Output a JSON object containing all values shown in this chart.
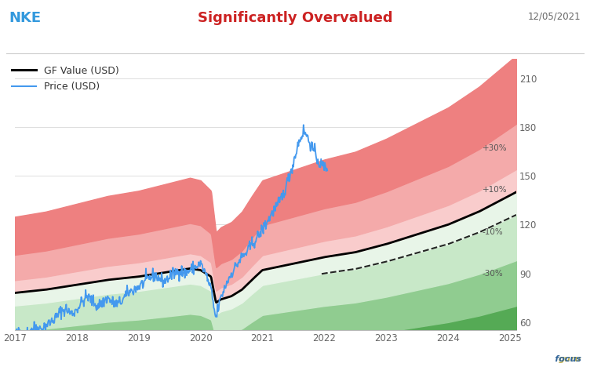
{
  "title_left": "NKE",
  "title_center": "Significantly Overvalued",
  "title_date": "12/05/2021",
  "title_left_color": "#3399DD",
  "title_center_color": "#CC2222",
  "title_date_color": "#666666",
  "legend_gf": "GF Value (USD)",
  "legend_price": "Price (USD)",
  "ylabel_right_ticks": [
    60,
    90,
    120,
    150,
    180,
    210
  ],
  "band_labels": [
    "+30%",
    "+10%",
    "-10%",
    "-30%"
  ],
  "x_start": 2017.0,
  "x_end": 2025.1,
  "xtick_labels": [
    "2017",
    "2018",
    "2019",
    "2020",
    "2021",
    "2022",
    "2023",
    "2024",
    "2025"
  ],
  "xtick_values": [
    2017,
    2018,
    2019,
    2020,
    2021,
    2022,
    2023,
    2024,
    2025
  ],
  "background_color": "#FFFFFF",
  "colors": {
    "red_dark": "#E04040",
    "red_mid": "#EE8080",
    "red_light": "#F4AAAA",
    "pink_light": "#F9CCCC",
    "white_zone": "#FFFFFF",
    "green_vlight": "#E8F5E8",
    "green_light": "#C8E8C8",
    "green_mid": "#90CC90",
    "green_strong": "#55AA55"
  },
  "gf_anchors_t": [
    2017.0,
    2017.5,
    2018.0,
    2018.5,
    2019.0,
    2019.5,
    2019.83,
    2020.0,
    2020.17,
    2020.25,
    2020.33,
    2020.5,
    2020.67,
    2020.83,
    2021.0,
    2021.25,
    2021.5,
    2021.75,
    2022.0,
    2022.5,
    2023.0,
    2023.5,
    2024.0,
    2024.5,
    2025.1
  ],
  "gf_anchors_v": [
    78,
    80,
    83,
    86,
    88,
    91,
    93,
    92,
    88,
    72,
    74,
    76,
    80,
    86,
    92,
    94,
    96,
    98,
    100,
    103,
    108,
    114,
    120,
    128,
    140
  ],
  "price_anchors_t": [
    2017.0,
    2017.08,
    2017.17,
    2017.25,
    2017.33,
    2017.42,
    2017.5,
    2017.58,
    2017.67,
    2017.75,
    2017.83,
    2017.92,
    2018.0,
    2018.08,
    2018.17,
    2018.25,
    2018.33,
    2018.42,
    2018.5,
    2018.58,
    2018.67,
    2018.75,
    2018.83,
    2018.92,
    2019.0,
    2019.08,
    2019.17,
    2019.25,
    2019.33,
    2019.42,
    2019.5,
    2019.58,
    2019.67,
    2019.75,
    2019.83,
    2019.92,
    2020.0,
    2020.08,
    2020.17,
    2020.22,
    2020.25,
    2020.28,
    2020.33,
    2020.42,
    2020.5,
    2020.58,
    2020.67,
    2020.75,
    2020.83,
    2020.92,
    2021.0,
    2021.08,
    2021.17,
    2021.25,
    2021.33,
    2021.42,
    2021.5,
    2021.58,
    2021.67,
    2021.75,
    2021.83,
    2021.92,
    2022.0
  ],
  "price_anchors_v": [
    52,
    54,
    53,
    55,
    57,
    56,
    58,
    60,
    63,
    67,
    68,
    65,
    68,
    72,
    76,
    73,
    70,
    72,
    75,
    72,
    71,
    74,
    78,
    80,
    82,
    84,
    87,
    89,
    87,
    85,
    88,
    90,
    92,
    90,
    92,
    94,
    96,
    90,
    80,
    68,
    62,
    68,
    75,
    84,
    90,
    95,
    100,
    103,
    108,
    112,
    117,
    122,
    128,
    132,
    138,
    148,
    158,
    170,
    178,
    172,
    165,
    158,
    155
  ]
}
